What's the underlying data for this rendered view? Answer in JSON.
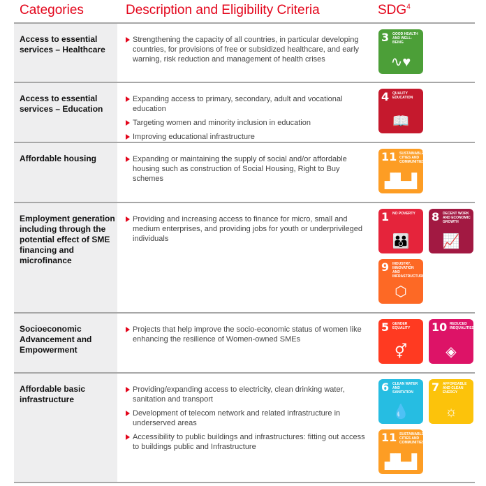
{
  "header": {
    "categories": "Categories",
    "description": "Description and Eligibility Criteria",
    "sdg": "SDG",
    "sdg_sup": "4"
  },
  "rows": [
    {
      "category": "Access to essential services – Healthcare",
      "items": [
        "Strengthening the capacity of all countries, in particular developing countries, for provisions of free or subsidized healthcare, and early warning, risk reduction and management of health crises"
      ],
      "sdgs": [
        {
          "num": "3",
          "title": "Good health and well-being",
          "color": "#4c9f38",
          "icon": "heartbeat-icon",
          "glyph": "∿♥"
        }
      ]
    },
    {
      "category": "Access to essential services – Education",
      "items": [
        "Expanding access to primary, secondary, adult and vocational education",
        "Targeting women and minority inclusion in education",
        "Improving educational infrastructure"
      ],
      "sdgs": [
        {
          "num": "4",
          "title": "Quality education",
          "color": "#c5192d",
          "icon": "book-icon",
          "glyph": "📖"
        }
      ]
    },
    {
      "category": "Affordable housing",
      "items": [
        "Expanding or maintaining the supply of social and/or affordable housing such as construction of Social Housing, Right to Buy schemes"
      ],
      "sdgs": [
        {
          "num": "11",
          "title": "Sustainable cities and communities",
          "color": "#fd9d24",
          "icon": "city-icon",
          "glyph": "▟▙▟"
        }
      ]
    },
    {
      "category": "Employment generation including through the potential effect of SME financing and microfinance",
      "items": [
        "Providing and increasing access to finance for micro, small and medium enterprises, and providing jobs for youth or underprivileged individuals"
      ],
      "sdgs": [
        {
          "num": "1",
          "title": "No poverty",
          "color": "#e5243b",
          "icon": "family-icon",
          "glyph": "👪"
        },
        {
          "num": "8",
          "title": "Decent work and economic growth",
          "color": "#a21942",
          "icon": "growth-chart-icon",
          "glyph": "📈"
        },
        {
          "num": "9",
          "title": "Industry, innovation and infrastructure",
          "color": "#fd6925",
          "icon": "cubes-icon",
          "glyph": "⬡"
        }
      ]
    },
    {
      "category": "Socioeconomic Advancement and Empowerment",
      "items": [
        "Projects that help improve the socio-economic status of women like enhancing the resilience of Women-owned SMEs"
      ],
      "sdgs": [
        {
          "num": "5",
          "title": "Gender equality",
          "color": "#ff3a21",
          "icon": "gender-icon",
          "glyph": "⚥"
        },
        {
          "num": "10",
          "title": "Reduced inequalities",
          "color": "#dd1367",
          "icon": "equality-arrows-icon",
          "glyph": "◈"
        }
      ]
    },
    {
      "category": "Affordable basic infrastructure",
      "items": [
        "Providing/expanding access to electricity, clean drinking water, sanitation and transport",
        "Development of telecom network and related infrastructure in underserved areas",
        "Accessibility to public buildings and infrastructures: fitting out access to buildings public and Infrastructure"
      ],
      "sdgs": [
        {
          "num": "6",
          "title": "Clean water and sanitation",
          "color": "#26bde2",
          "icon": "water-cup-icon",
          "glyph": "💧"
        },
        {
          "num": "7",
          "title": "Affordable and clean energy",
          "color": "#fcc30b",
          "icon": "sun-power-icon",
          "glyph": "☼"
        },
        {
          "num": "11",
          "title": "Sustainable cities and communities",
          "color": "#fd9d24",
          "icon": "city-icon",
          "glyph": "▟▙▟"
        }
      ]
    }
  ]
}
